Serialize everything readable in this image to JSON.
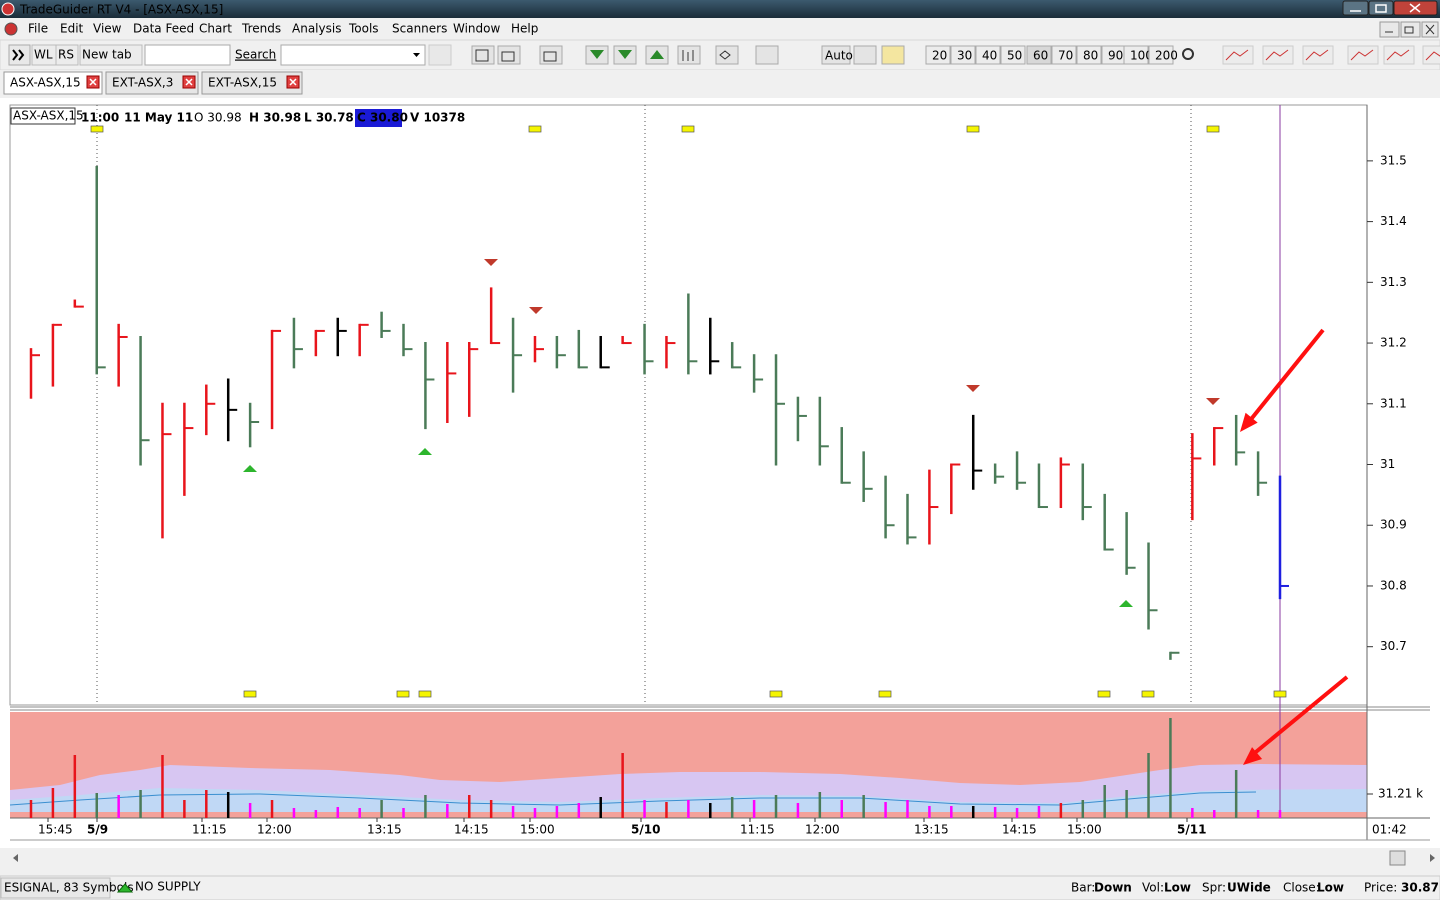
{
  "window": {
    "title": "TradeGuider RT V4 - [ASX-ASX,15]"
  },
  "menu": [
    "File",
    "Edit",
    "View",
    "Data Feed",
    "Chart",
    "Trends",
    "Analysis",
    "Tools",
    "Scanners",
    "Window",
    "Help"
  ],
  "toolbar": {
    "buttons": [
      "WL",
      "RS",
      "New tab"
    ],
    "search": "Search",
    "auto": "Auto",
    "periods": [
      "20",
      "30",
      "40",
      "50",
      "60",
      "70",
      "80",
      "90",
      "100",
      "200"
    ]
  },
  "tabs": [
    "ASX-ASX,15",
    "EXT-ASX,3",
    "EXT-ASX,15"
  ],
  "chart_info": {
    "symbol": "ASX-ASX,15",
    "time": "11:00",
    "date": "11 May 11",
    "open": "O 30.98",
    "high": "H 30.98",
    "low": "L 30.78",
    "close": "C 30.80",
    "volume": "V 10378"
  },
  "chart_data": {
    "type": "ohlc",
    "high": [
      31.19,
      31.23,
      31.27,
      31.49,
      31.23,
      31.21,
      31.1,
      31.1,
      31.13,
      31.14,
      31.1,
      31.22,
      31.24,
      31.22,
      31.24,
      31.23,
      31.25,
      31.23,
      31.2,
      31.2,
      31.2,
      31.29,
      31.24,
      31.21,
      31.21,
      31.22,
      31.21,
      31.21,
      31.23,
      31.21,
      31.28,
      31.24,
      31.2,
      31.18,
      31.18,
      31.11,
      31.11,
      31.06,
      31.02,
      30.98,
      30.95,
      30.99,
      31.0,
      31.08,
      31.0,
      31.02,
      31.0,
      31.01,
      31.0,
      30.95,
      30.92,
      30.87,
      30.69,
      31.05,
      31.06,
      31.08,
      31.02,
      30.98
    ],
    "low": [
      31.11,
      31.13,
      31.26,
      31.15,
      31.13,
      31.0,
      30.88,
      30.95,
      31.05,
      31.04,
      31.03,
      31.06,
      31.16,
      31.18,
      31.18,
      31.18,
      31.21,
      31.18,
      31.06,
      31.07,
      31.08,
      31.2,
      31.12,
      31.17,
      31.16,
      31.16,
      31.16,
      31.2,
      31.15,
      31.16,
      31.15,
      31.15,
      31.16,
      31.12,
      31.0,
      31.04,
      31.0,
      30.97,
      30.94,
      30.88,
      30.87,
      30.87,
      30.92,
      30.96,
      30.97,
      30.96,
      30.93,
      30.93,
      30.91,
      30.86,
      30.82,
      30.73,
      30.68,
      30.91,
      31.0,
      31.0,
      30.95,
      30.78
    ],
    "close": [
      31.18,
      31.23,
      31.26,
      31.16,
      31.21,
      31.04,
      31.05,
      31.06,
      31.1,
      31.09,
      31.07,
      31.22,
      31.19,
      31.22,
      31.22,
      31.23,
      31.22,
      31.19,
      31.14,
      31.15,
      31.19,
      31.2,
      31.18,
      31.19,
      31.18,
      31.16,
      31.16,
      31.2,
      31.17,
      31.2,
      31.17,
      31.17,
      31.16,
      31.14,
      31.1,
      31.08,
      31.03,
      30.97,
      30.96,
      30.9,
      30.88,
      30.93,
      31.0,
      30.99,
      30.98,
      30.97,
      30.93,
      31.0,
      30.93,
      30.86,
      30.83,
      30.76,
      30.69,
      31.01,
      31.06,
      31.02,
      30.97,
      30.8
    ],
    "colors": [
      "#e8141b",
      "#e8141b",
      "#e8141b",
      "#4b7b58",
      "#e8141b",
      "#4b7b58",
      "#e8141b",
      "#e8141b",
      "#e8141b",
      "#000000",
      "#4b7b58",
      "#e8141b",
      "#4b7b58",
      "#e8141b",
      "#000000",
      "#e8141b",
      "#4b7b58",
      "#4b7b58",
      "#4b7b58",
      "#e8141b",
      "#e8141b",
      "#e8141b",
      "#4b7b58",
      "#e8141b",
      "#4b7b58",
      "#4b7b58",
      "#000000",
      "#e8141b",
      "#4b7b58",
      "#e8141b",
      "#4b7b58",
      "#000000",
      "#4b7b58",
      "#4b7b58",
      "#4b7b58",
      "#4b7b58",
      "#4b7b58",
      "#4b7b58",
      "#4b7b58",
      "#4b7b58",
      "#4b7b58",
      "#e8141b",
      "#e8141b",
      "#000000",
      "#4b7b58",
      "#4b7b58",
      "#4b7b58",
      "#e8141b",
      "#4b7b58",
      "#4b7b58",
      "#4b7b58",
      "#4b7b58",
      "#4b7b58",
      "#e8141b",
      "#e8141b",
      "#4b7b58",
      "#4b7b58",
      "#1f1fe0"
    ],
    "ylim": [
      30.604,
      31.592
    ],
    "yticks": [
      30.7,
      30.8,
      30.9,
      31,
      31.1,
      31.2,
      31.3,
      31.4,
      31.5
    ],
    "x_labels": [
      "15:45",
      "5/9",
      "11:15",
      "12:00",
      "13:15",
      "14:15",
      "15:00",
      "5/10",
      "11:15",
      "12:00",
      "13:15",
      "14:15",
      "15:00",
      "5/11"
    ],
    "time_label": "01:42",
    "volume": {
      "values": [
        23.4,
        39,
        81.9,
        32.5,
        29.9,
        36.4,
        81.9,
        23.4,
        36.4,
        33.8,
        19.5,
        23.4,
        13,
        10.4,
        14.3,
        13,
        23.4,
        13,
        29.9,
        18.2,
        29.9,
        23.4,
        15.6,
        13,
        15.6,
        19.5,
        27.3,
        84.5,
        23.4,
        20.8,
        23.4,
        19.5,
        27.3,
        23.4,
        29.9,
        19.5,
        33.8,
        23.4,
        29.9,
        20.8,
        23.4,
        15.6,
        15.6,
        15.6,
        14.3,
        13,
        15.6,
        19.5,
        23.4,
        42.9,
        36.4,
        84.5,
        130,
        13,
        10.4,
        62.4,
        10.4,
        10.378
      ],
      "colors": [
        "#e8141b",
        "#e8141b",
        "#e8141b",
        "#4b7b58",
        "#ff00ff",
        "#4b7b58",
        "#e8141b",
        "#e8141b",
        "#e8141b",
        "#000000",
        "#ff00ff",
        "#e8141b",
        "#ff00ff",
        "#ff00ff",
        "#ff00ff",
        "#ff00ff",
        "#4b7b58",
        "#ff00ff",
        "#4b7b58",
        "#ff00ff",
        "#e8141b",
        "#e8141b",
        "#ff00ff",
        "#ff00ff",
        "#ff00ff",
        "#ff00ff",
        "#000000",
        "#e8141b",
        "#ff00ff",
        "#e8141b",
        "#ff00ff",
        "#000000",
        "#4b7b58",
        "#ff00ff",
        "#4b7b58",
        "#ff00ff",
        "#4b7b58",
        "#ff00ff",
        "#4b7b58",
        "#ff00ff",
        "#ff00ff",
        "#ff00ff",
        "#ff00ff",
        "#000000",
        "#ff00ff",
        "#ff00ff",
        "#ff00ff",
        "#e8141b",
        "#4b7b58",
        "#4b7b58",
        "#4b7b58",
        "#4b7b58",
        "#4b7b58",
        "#ff00ff",
        "#ff00ff",
        "#4b7b58",
        "#ff00ff",
        "#ff00ff"
      ],
      "ylim": [
        0,
        137.8
      ],
      "yticks": [
        {
          "value": 31.21,
          "label": "31.21 k"
        }
      ]
    }
  },
  "status": {
    "feed": "ESIGNAL, 83 Symbols",
    "signal": "NO SUPPLY",
    "fields": [
      {
        "label": "Bar:",
        "value": "Down"
      },
      {
        "label": "Vol:",
        "value": "Low"
      },
      {
        "label": "Spr:",
        "value": "UWide"
      },
      {
        "label": "Close:",
        "value": "Low"
      },
      {
        "label": "Price:",
        "value": "30.87"
      }
    ]
  }
}
